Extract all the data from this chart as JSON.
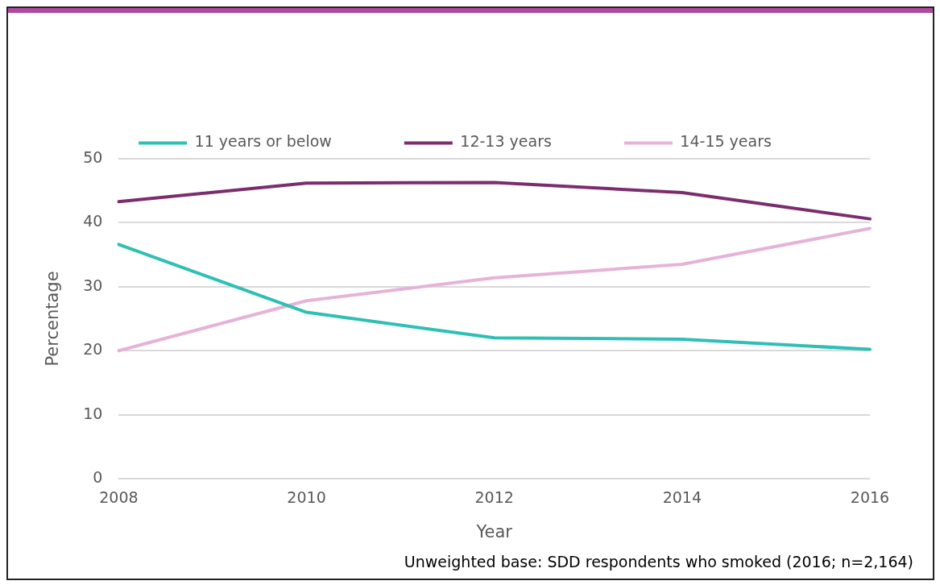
{
  "chart_data": {
    "type": "line",
    "xlabel": "Year",
    "ylabel": "Percentage",
    "categories": [
      "2008",
      "2010",
      "2012",
      "2014",
      "2016"
    ],
    "series": [
      {
        "name": "11 years or below",
        "color": "#2ebfb5",
        "values": [
          36.6,
          26.0,
          22.0,
          21.8,
          20.2
        ]
      },
      {
        "name": "12-13 years",
        "color": "#7b2d6e",
        "values": [
          43.3,
          46.2,
          46.3,
          44.7,
          40.6
        ]
      },
      {
        "name": "14-15 years",
        "color": "#e6b3d8",
        "values": [
          20.0,
          27.8,
          31.4,
          33.5,
          39.1
        ]
      }
    ],
    "ylim": [
      0,
      50
    ],
    "yticks": [
      0,
      10,
      20,
      30,
      40,
      50
    ],
    "grid": "y",
    "legend": "top",
    "marker": "none",
    "line_style": "solid",
    "annotations": [
      "Unweighted base: SDD respondents who smoked (2016; n=2,164)"
    ]
  }
}
